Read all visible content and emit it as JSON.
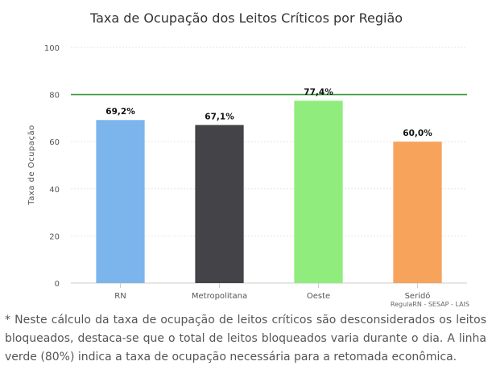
{
  "chart_data": {
    "type": "bar",
    "title": "Taxa de Ocupação dos Leitos Críticos por Região",
    "ylabel": "Taxa de Ocupação",
    "xlabel": "",
    "categories": [
      "RN",
      "Metropolitana",
      "Oeste",
      "Seridó"
    ],
    "values": [
      69.2,
      67.1,
      77.4,
      60.0
    ],
    "data_labels": [
      "69,2%",
      "67,1%",
      "77,4%",
      "60,0%"
    ],
    "colors": [
      "#7cb5ec",
      "#434348",
      "#90ed7d",
      "#f7a35c"
    ],
    "ylim": [
      0,
      100
    ],
    "yticks": [
      0,
      20,
      40,
      60,
      80,
      100
    ],
    "grid": true,
    "reference_line": {
      "value": 80,
      "color": "#3a9a3a"
    },
    "credits": "RegulaRN - SESAP - LAIS"
  },
  "footnote": "* Neste cálculo da taxa de ocupação de leitos críticos são desconsiderados os leitos bloqueados, destaca-se que o total de leitos bloqueados varia durante o dia. A linha verde (80%) indica a taxa de ocupação necessária para a retomada econômica."
}
